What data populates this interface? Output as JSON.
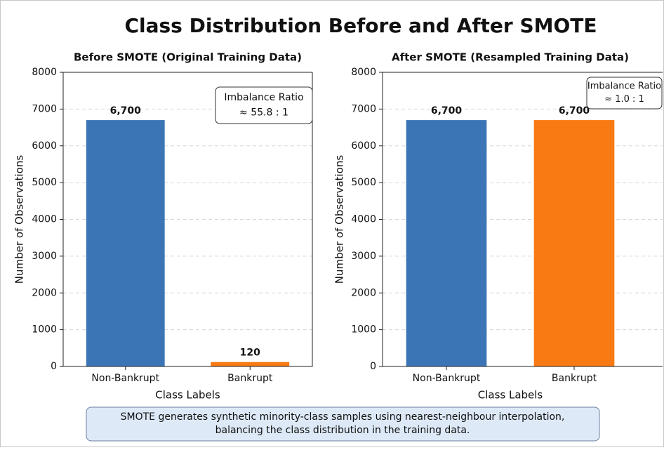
{
  "title": "Class Distribution Before and After SMOTE",
  "chart_data": [
    {
      "type": "bar",
      "title": "Before SMOTE (Original Training Data)",
      "xlabel": "Class Labels",
      "ylabel": "Number of Observations",
      "categories": [
        "Non-Bankrupt",
        "Bankrupt"
      ],
      "values": [
        6700,
        120
      ],
      "value_labels": [
        "6,700",
        "120"
      ],
      "colors": [
        "#3c75b5",
        "#f97a12"
      ],
      "ylim": [
        0,
        8000
      ],
      "yticks": [
        0,
        1000,
        2000,
        3000,
        4000,
        5000,
        6000,
        7000,
        8000
      ],
      "grid": true,
      "annotation": [
        "Imbalance Ratio",
        "≈ 55.8 : 1"
      ]
    },
    {
      "type": "bar",
      "title": "After SMOTE (Resampled Training Data)",
      "xlabel": "Class Labels",
      "ylabel": "Number of Observations",
      "categories": [
        "Non-Bankrupt",
        "Bankrupt"
      ],
      "values": [
        6700,
        6700
      ],
      "value_labels": [
        "6,700",
        "6,700"
      ],
      "colors": [
        "#3c75b5",
        "#f97a12"
      ],
      "ylim": [
        0,
        8000
      ],
      "yticks": [
        0,
        1000,
        2000,
        3000,
        4000,
        5000,
        6000,
        7000,
        8000
      ],
      "grid": true,
      "annotation": [
        "Imbalance Ratio",
        "≈ 1.0 : 1"
      ]
    }
  ],
  "caption": [
    "SMOTE generates synthetic minority-class samples using nearest-neighbour interpolation,",
    "balancing the class distribution in the training data."
  ]
}
